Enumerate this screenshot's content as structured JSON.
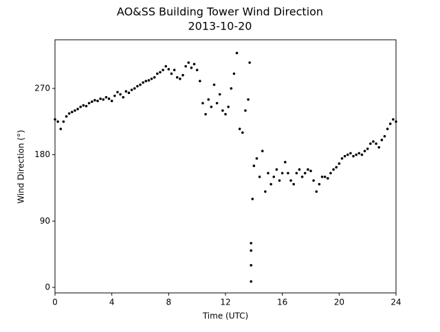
{
  "chart_data": {
    "type": "scatter",
    "title": "AO&SS Building Tower Wind Direction",
    "subtitle": "2013-10-20",
    "x_label": "Time (UTC)",
    "y_label": "Wind Direction (°)",
    "color": "#000000",
    "xlim": [
      0,
      24
    ],
    "ylim": [
      -7.5,
      336
    ],
    "xticks": [
      0,
      4,
      8,
      12,
      16,
      20,
      24
    ],
    "yticks": [
      0,
      90,
      180,
      270
    ],
    "x": [
      0,
      0.2,
      0.4,
      0.6,
      0.8,
      1.0,
      1.2,
      1.4,
      1.6,
      1.8,
      2.0,
      2.2,
      2.4,
      2.6,
      2.8,
      3.0,
      3.2,
      3.4,
      3.6,
      3.8,
      4.0,
      4.2,
      4.4,
      4.6,
      4.8,
      5.0,
      5.2,
      5.4,
      5.6,
      5.8,
      6.0,
      6.2,
      6.4,
      6.6,
      6.8,
      7.0,
      7.2,
      7.4,
      7.6,
      7.8,
      8.0,
      8.2,
      8.4,
      8.6,
      8.8,
      9.0,
      9.2,
      9.4,
      9.6,
      9.8,
      10.0,
      10.2,
      10.4,
      10.6,
      10.8,
      11.0,
      11.2,
      11.4,
      11.6,
      11.8,
      12.0,
      12.2,
      12.4,
      12.6,
      12.8,
      13.0,
      13.2,
      13.4,
      13.6,
      13.7,
      13.8,
      13.8,
      13.8,
      13.8,
      13.9,
      14.0,
      14.2,
      14.4,
      14.6,
      14.8,
      15.0,
      15.2,
      15.4,
      15.6,
      15.8,
      16.0,
      16.2,
      16.4,
      16.6,
      16.8,
      17.0,
      17.2,
      17.4,
      17.6,
      17.8,
      18.0,
      18.2,
      18.4,
      18.6,
      18.8,
      19.0,
      19.2,
      19.4,
      19.6,
      19.8,
      20.0,
      20.2,
      20.4,
      20.6,
      20.8,
      21.0,
      21.2,
      21.4,
      21.6,
      21.8,
      22.0,
      22.2,
      22.4,
      22.6,
      22.8,
      23.0,
      23.2,
      23.4,
      23.6,
      23.8,
      24.0
    ],
    "values": [
      228,
      225,
      215,
      225,
      232,
      236,
      238,
      240,
      242,
      245,
      247,
      246,
      250,
      252,
      254,
      253,
      256,
      255,
      258,
      256,
      253,
      260,
      265,
      262,
      258,
      266,
      264,
      268,
      270,
      273,
      275,
      278,
      280,
      281,
      283,
      285,
      290,
      292,
      295,
      300,
      296,
      290,
      295,
      285,
      283,
      288,
      300,
      305,
      298,
      303,
      295,
      280,
      250,
      235,
      255,
      245,
      275,
      250,
      262,
      240,
      235,
      245,
      270,
      290,
      318,
      215,
      210,
      240,
      255,
      305,
      50,
      8,
      30,
      60,
      120,
      165,
      175,
      150,
      185,
      130,
      155,
      140,
      150,
      160,
      145,
      155,
      170,
      155,
      145,
      140,
      155,
      160,
      150,
      155,
      160,
      158,
      145,
      130,
      140,
      150,
      150,
      148,
      155,
      160,
      163,
      168,
      175,
      178,
      180,
      182,
      178,
      180,
      182,
      180,
      185,
      188,
      195,
      198,
      195,
      190,
      200,
      205,
      215,
      222,
      228,
      225
    ]
  }
}
